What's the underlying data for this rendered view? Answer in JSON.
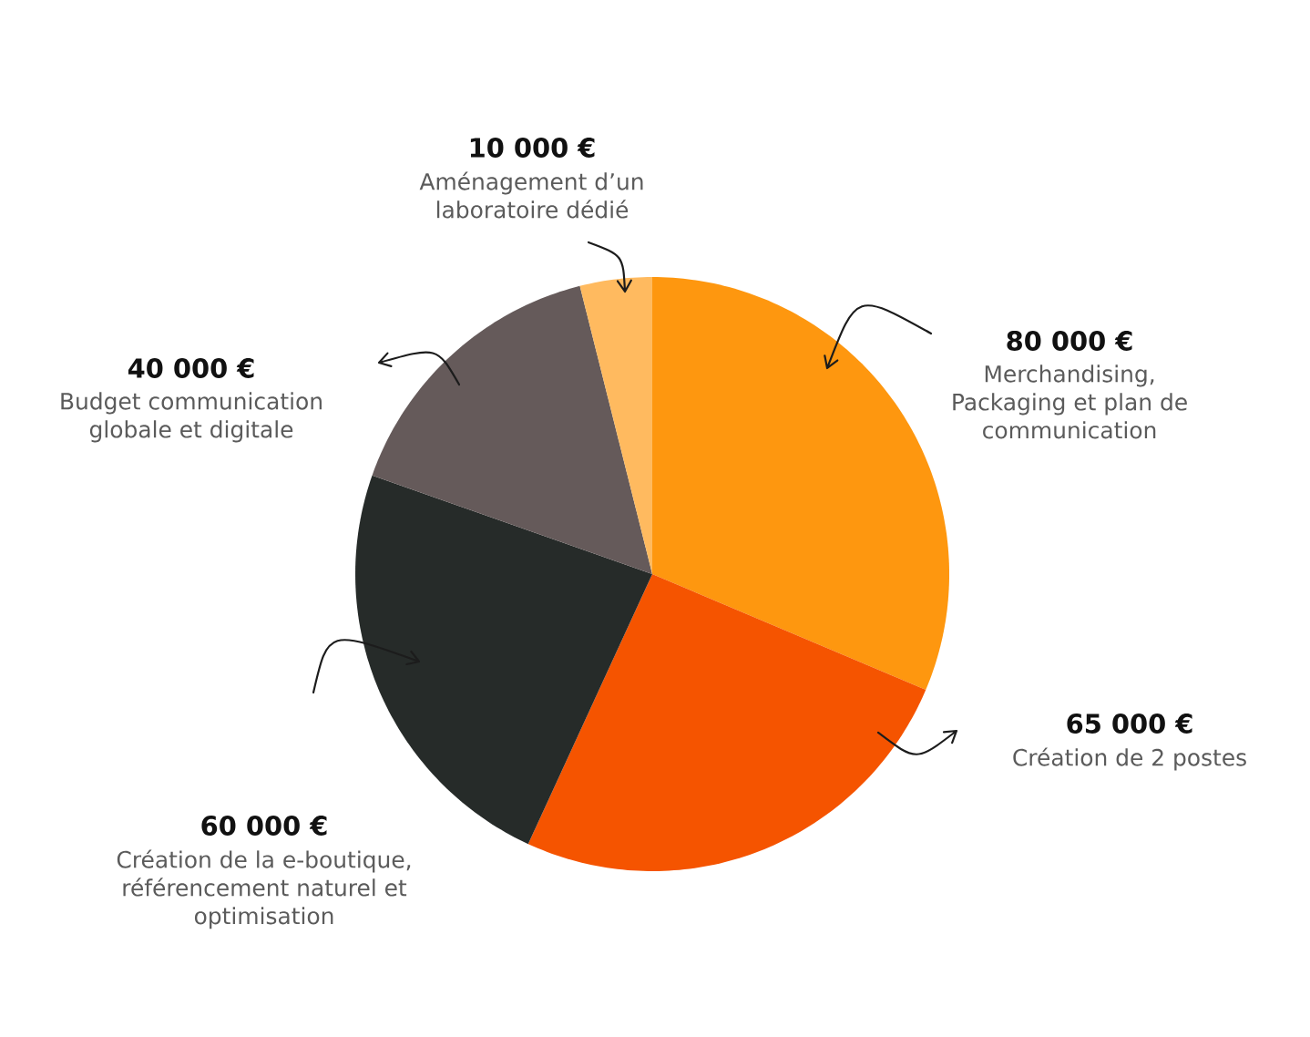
{
  "chart_data": {
    "type": "pie",
    "categories": [
      "Merchandising, Packaging et plan de communication",
      "Création de 2 postes",
      "Création de la e-boutique, référencement naturel et optimisation",
      "Budget communication globale et digitale",
      "Aménagement d’un laboratoire dédié"
    ],
    "values": [
      80000,
      65000,
      60000,
      40000,
      10000
    ],
    "colors": [
      "#fe970f",
      "#f55400",
      "#262b29",
      "#655a5a",
      "#ffba5f"
    ],
    "value_labels": [
      "80 000 €",
      "65 000 €",
      "60 000 €",
      "40 000 €",
      "10 000 €"
    ]
  }
}
